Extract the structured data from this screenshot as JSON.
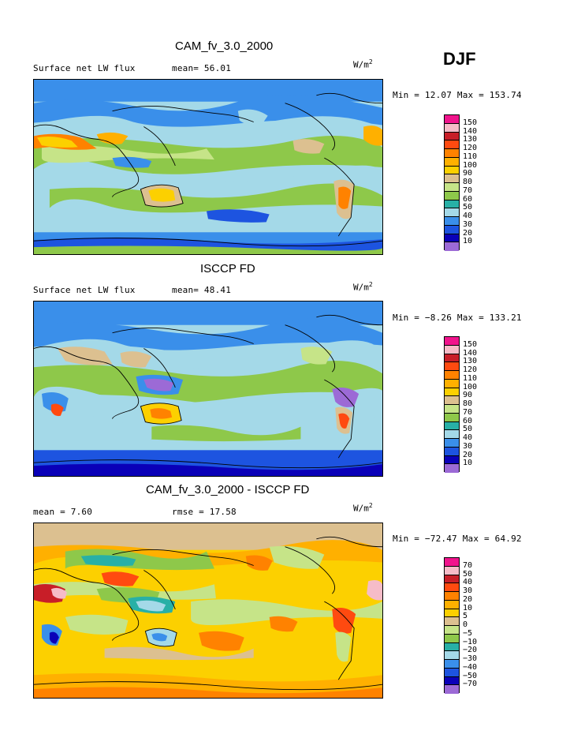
{
  "season": "DJF",
  "palettes": {
    "abs": [
      "#9c6ad6",
      "#0a00b8",
      "#1d54e0",
      "#3a8fea",
      "#a4d9e8",
      "#28b0a6",
      "#8ec84a",
      "#c6e488",
      "#dcc090",
      "#fcd000",
      "#ffb000",
      "#ff8200",
      "#ff4a10",
      "#c81e28",
      "#f6bcc8",
      "#f0148c"
    ],
    "diff": [
      "#9c6ad6",
      "#0a00b8",
      "#1d54e0",
      "#3a8fea",
      "#a4d9e8",
      "#28b0a6",
      "#8ec84a",
      "#c6e488",
      "#dcc090",
      "#fcd000",
      "#ffb000",
      "#ff8200",
      "#ff4a10",
      "#c81e28",
      "#f6bcc8",
      "#f0148c"
    ]
  },
  "panels": [
    {
      "title": "CAM_fv_3.0_2000",
      "left_text": "Surface net LW flux",
      "stat_text": "mean=  56.01",
      "units": "W/m",
      "units_exp": "2",
      "minmax": "Min =  12.07 Max = 153.74",
      "legend_labels": [
        "150",
        "140",
        "130",
        "120",
        "110",
        "100",
        "90",
        "80",
        "70",
        "60",
        "50",
        "40",
        "30",
        "20",
        "10"
      ]
    },
    {
      "title": "ISCCP FD",
      "left_text": "Surface net LW flux",
      "stat_text": "mean=  48.41",
      "units": "W/m",
      "units_exp": "2",
      "minmax": "Min =  −8.26 Max = 133.21",
      "legend_labels": [
        "150",
        "140",
        "130",
        "120",
        "110",
        "100",
        "90",
        "80",
        "70",
        "60",
        "50",
        "40",
        "30",
        "20",
        "10"
      ]
    },
    {
      "title": "CAM_fv_3.0_2000 - ISCCP FD",
      "left_text": "mean =   7.60",
      "stat_text": "rmse =  17.58",
      "units": "W/m",
      "units_exp": "2",
      "minmax": "Min = −72.47 Max =  64.92",
      "legend_labels": [
        "70",
        "50",
        "40",
        "30",
        "20",
        "10",
        "5",
        "0",
        "−5",
        "−10",
        "−20",
        "−30",
        "−40",
        "−50",
        "−70"
      ]
    }
  ]
}
